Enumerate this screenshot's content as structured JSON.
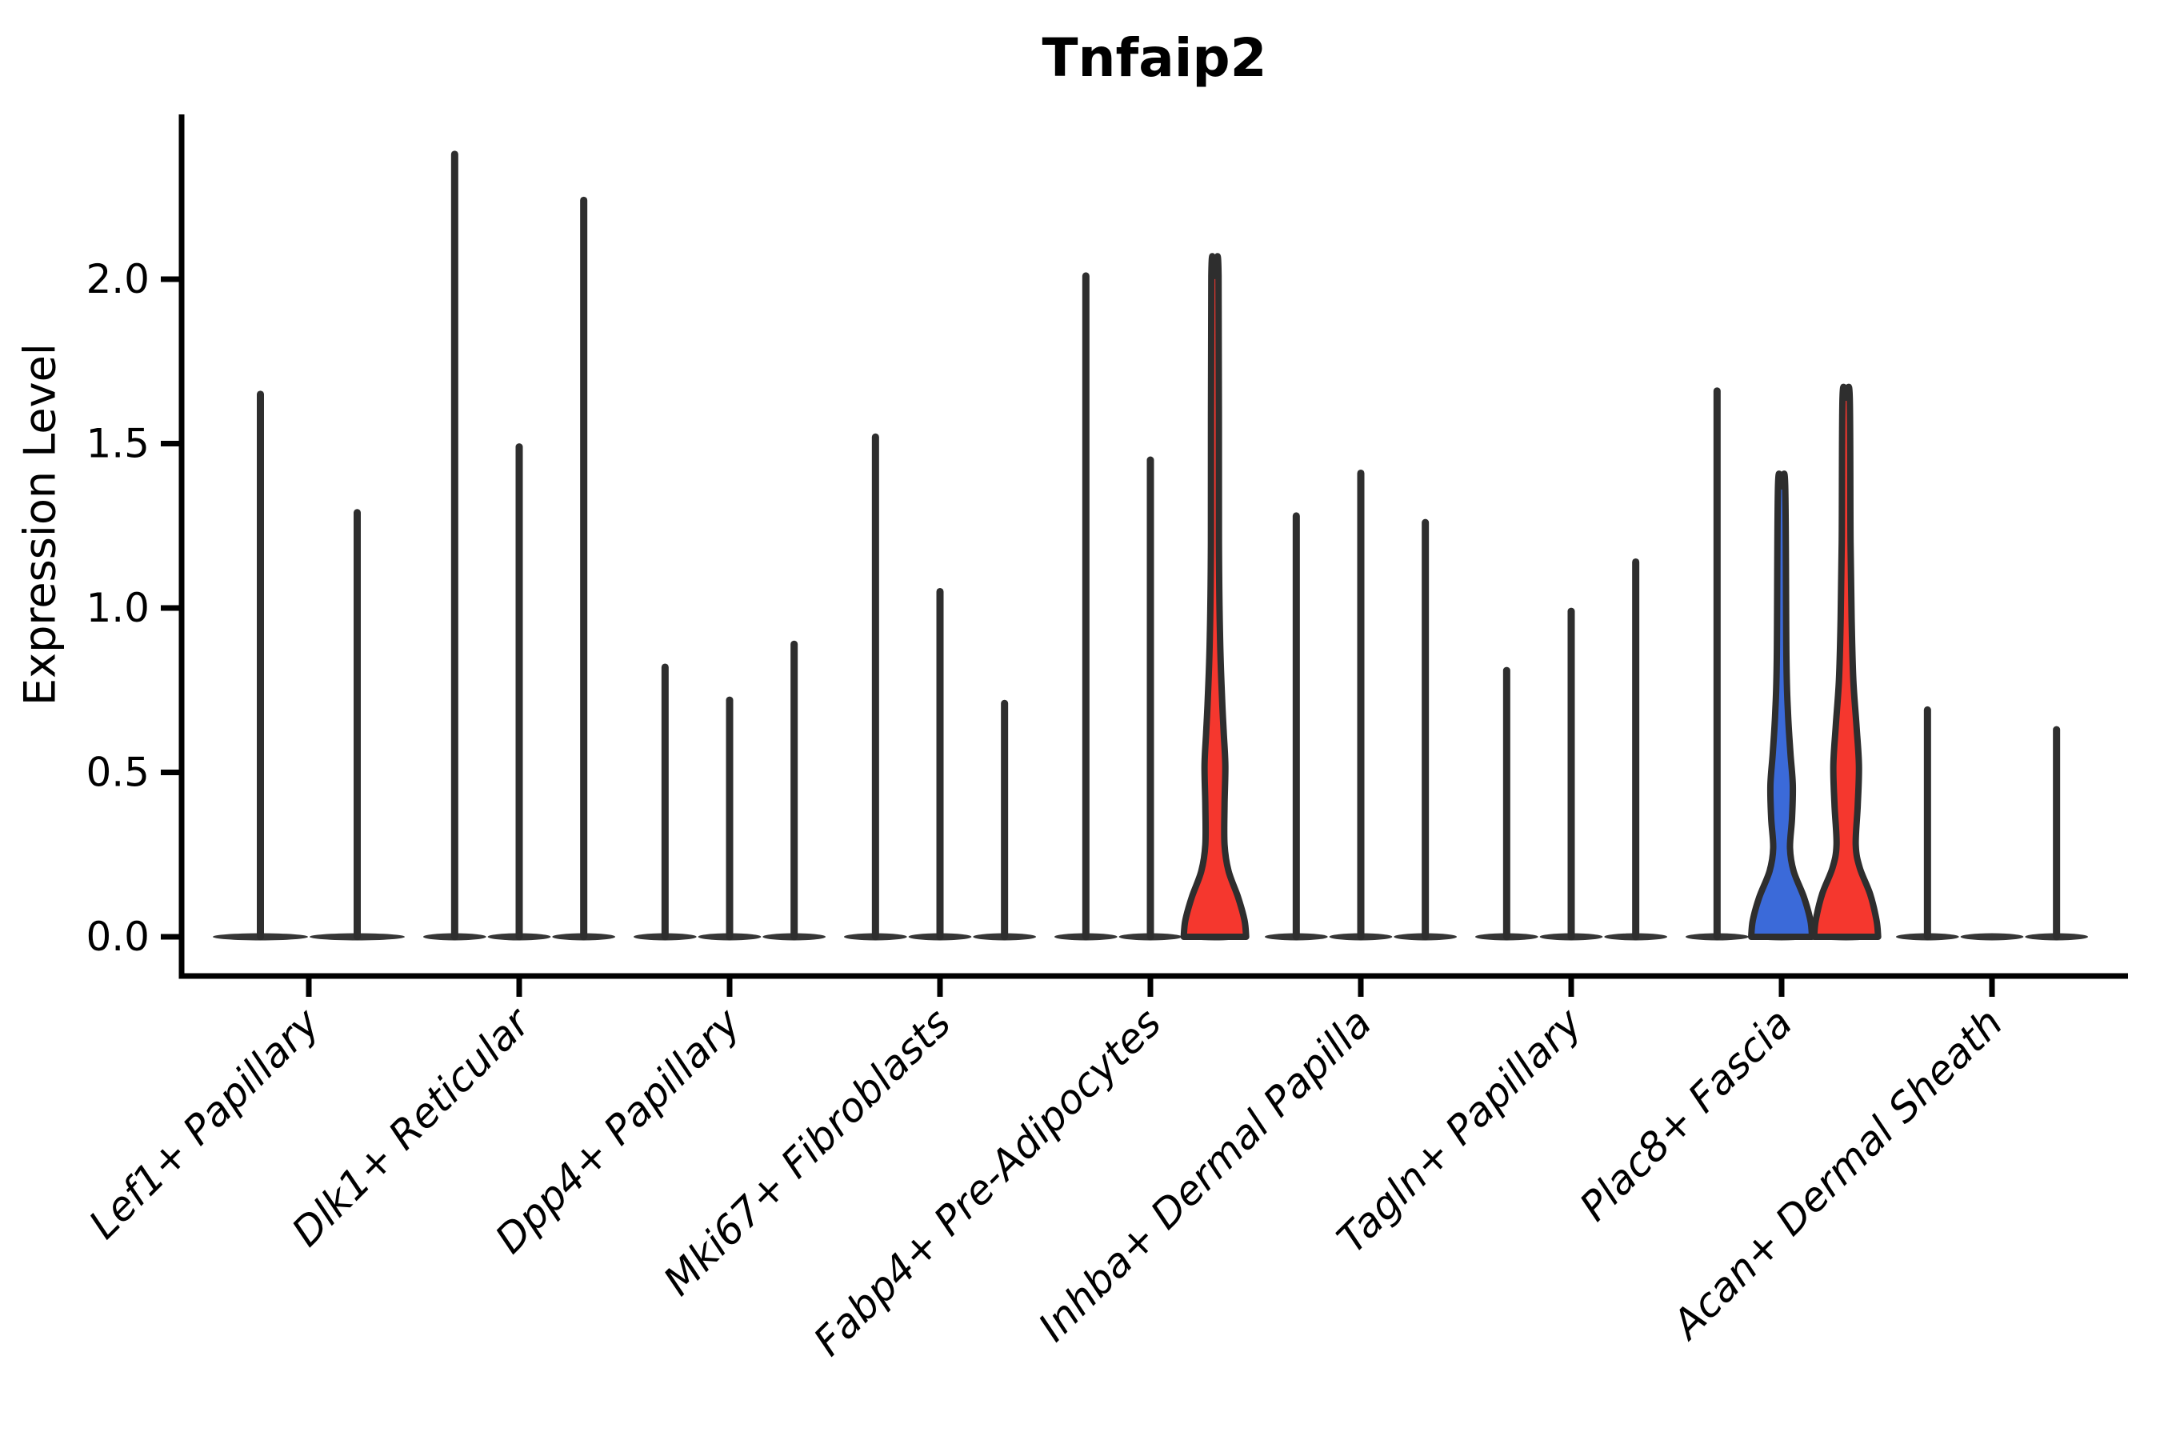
{
  "chart_data": {
    "type": "violin",
    "title": "Tnfaip2",
    "ylabel": "Expression Level",
    "xlabel": "",
    "ylim": [
      0,
      2.45
    ],
    "grid": false,
    "legend": "none",
    "yticks": [
      {
        "label": "0.0",
        "value": 0.0
      },
      {
        "label": "0.5",
        "value": 0.5
      },
      {
        "label": "1.0",
        "value": 1.0
      },
      {
        "label": "1.5",
        "value": 1.5
      },
      {
        "label": "2.0",
        "value": 2.0
      }
    ],
    "categories": [
      "Lef1+ Papillary",
      "Dlk1+ Reticular",
      "Dpp4+ Papillary",
      "Mki67+ Fibroblasts",
      "Fabp4+ Pre-Adipocytes",
      "Inhba+ Dermal Papilla",
      "Tagln+ Papillary",
      "Plac8+ Fascia",
      "Acan+ Dermal Sheath"
    ],
    "groups": [
      {
        "category": "Lef1+ Papillary",
        "violins": [
          {
            "max": 1.65
          },
          {
            "max": 1.29
          }
        ]
      },
      {
        "category": "Dlk1+ Reticular",
        "violins": [
          {
            "max": 2.38
          },
          {
            "max": 1.49
          },
          {
            "max": 2.24
          }
        ]
      },
      {
        "category": "Dpp4+ Papillary",
        "violins": [
          {
            "max": 0.82
          },
          {
            "max": 0.72
          },
          {
            "max": 0.89
          }
        ]
      },
      {
        "category": "Mki67+ Fibroblasts",
        "violins": [
          {
            "max": 1.52
          },
          {
            "max": 1.05
          },
          {
            "max": 0.71
          }
        ]
      },
      {
        "category": "Fabp4+ Pre-Adipocytes",
        "violins": [
          {
            "max": 2.01
          },
          {
            "max": 1.45
          },
          {
            "max": 2.01,
            "fill": "red",
            "profile": [
              [
                0,
                39
              ],
              [
                0.05,
                37
              ],
              [
                0.12,
                29
              ],
              [
                0.2,
                17
              ],
              [
                0.28,
                12
              ],
              [
                0.4,
                12
              ],
              [
                0.52,
                13
              ],
              [
                0.62,
                11
              ],
              [
                0.72,
                9
              ],
              [
                0.9,
                6.5
              ],
              [
                1.2,
                5
              ],
              [
                2.01,
                4.5
              ]
            ]
          }
        ]
      },
      {
        "category": "Inhba+ Dermal Papilla",
        "violins": [
          {
            "max": 1.28
          },
          {
            "max": 1.41
          },
          {
            "max": 1.26
          }
        ]
      },
      {
        "category": "Tagln+ Papillary",
        "violins": [
          {
            "max": 0.81
          },
          {
            "max": 0.99
          },
          {
            "max": 1.14
          }
        ]
      },
      {
        "category": "Plac8+ Fascia",
        "violins": [
          {
            "max": 1.66
          },
          {
            "max": 1.37,
            "fill": "blue",
            "profile": [
              [
                0,
                38
              ],
              [
                0.05,
                36
              ],
              [
                0.12,
                28
              ],
              [
                0.2,
                15
              ],
              [
                0.27,
                10.5
              ],
              [
                0.36,
                13
              ],
              [
                0.46,
                14
              ],
              [
                0.56,
                11
              ],
              [
                0.68,
                8
              ],
              [
                0.85,
                6
              ],
              [
                1.37,
                4.5
              ]
            ]
          },
          {
            "max": 1.64,
            "fill": "red",
            "profile": [
              [
                0,
                40
              ],
              [
                0.05,
                38
              ],
              [
                0.13,
                30
              ],
              [
                0.21,
                17
              ],
              [
                0.28,
                12
              ],
              [
                0.4,
                14.5
              ],
              [
                0.52,
                16
              ],
              [
                0.64,
                13
              ],
              [
                0.78,
                9
              ],
              [
                0.95,
                7
              ],
              [
                1.2,
                5.5
              ],
              [
                1.64,
                4.5
              ]
            ]
          }
        ]
      },
      {
        "category": "Acan+ Dermal Sheath",
        "violins": [
          {
            "max": 0.69
          },
          {
            "max": 0.0
          },
          {
            "max": 0.63
          }
        ]
      }
    ],
    "colors": {
      "red": "#F5372E",
      "blue": "#3B6AD9",
      "outline": "#2E2E2E",
      "axis": "#000000",
      "text": "#000000"
    }
  }
}
